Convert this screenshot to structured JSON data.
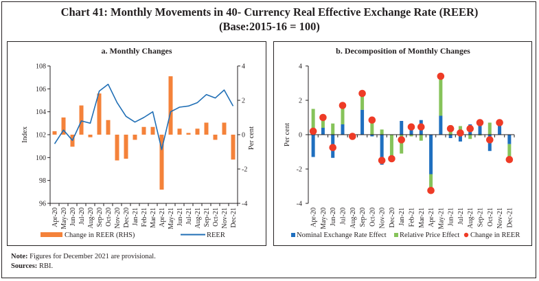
{
  "title": {
    "line1": "Chart 41: Monthly Movements in 40- Currency Real Effective Exchange Rate (REER)",
    "line2": "(Base:2015-16 = 100)"
  },
  "notes": {
    "note_label": "Note:",
    "note_text": " Figures for December 2021 are provisional.",
    "sources_label": "Sources:",
    "sources_text": " RBI."
  },
  "colors": {
    "orange": "#f4823a",
    "blue": "#1f6eb5",
    "nominal_blue": "#1f6fbf",
    "green": "#86c35a",
    "red": "#ee3b26"
  },
  "chart_data": [
    {
      "type": "bar+line",
      "title": "a. Monthly Changes",
      "xlabel": "",
      "ylabel": "Index",
      "y2label": "Per cent",
      "categories": [
        "Apr-20",
        "May-20",
        "Jun-20",
        "Jul-20",
        "Aug-20",
        "Sep-20",
        "Oct-20",
        "Nov-20",
        "Dec-20",
        "Jan-21",
        "Feb-21",
        "Mar-21",
        "Apr-21",
        "May-21",
        "Jun-21",
        "Jul-21",
        "Aug-21",
        "Sep-21",
        "Oct-21",
        "Nov-21",
        "Dec-21"
      ],
      "ylim": [
        96,
        108
      ],
      "yticks": [
        "96",
        "98",
        "100",
        "102",
        "104",
        "106",
        "108"
      ],
      "y2lim": [
        -4,
        4
      ],
      "y2ticks": [
        "-4",
        "-2",
        "0",
        "2",
        "4"
      ],
      "series": [
        {
          "name": "Change in REER (RHS)",
          "type": "bar",
          "axis": "right",
          "values": [
            0.2,
            1.0,
            -0.7,
            1.7,
            -0.15,
            2.4,
            0.85,
            -1.5,
            -1.4,
            -0.3,
            0.45,
            0.45,
            -3.2,
            3.4,
            0.35,
            0.1,
            0.35,
            0.7,
            -0.3,
            0.7,
            -1.45
          ]
        },
        {
          "name": "REER",
          "type": "line",
          "axis": "left",
          "values": [
            101.2,
            102.4,
            101.5,
            103.2,
            103.0,
            105.8,
            106.4,
            104.8,
            103.6,
            103.1,
            103.5,
            104.0,
            100.7,
            104.0,
            104.4,
            104.5,
            104.8,
            105.5,
            105.2,
            105.9,
            104.5
          ]
        }
      ],
      "legend": [
        "Change in REER (RHS)",
        "REER"
      ],
      "legend_position": "bottom"
    },
    {
      "type": "stacked-bar+scatter",
      "title": "b. Decomposition of Monthly Changes",
      "xlabel": "",
      "ylabel": "Per cent",
      "categories": [
        "Apr-20",
        "May-20",
        "Jun-20",
        "Jul-20",
        "Aug-20",
        "Sep-20",
        "Oct-20",
        "Nov-20",
        "Dec-20",
        "Jan-21",
        "Feb-21",
        "Mar-21",
        "Apr-21",
        "May-21",
        "Jun-21",
        "Jul-21",
        "Aug-21",
        "Sep-21",
        "Oct-21",
        "Nov-21",
        "Dec-21"
      ],
      "ylim": [
        -4,
        4
      ],
      "yticks": [
        "-4",
        "-2",
        "0",
        "2",
        "4"
      ],
      "series": [
        {
          "name": "Nominal Exchange Rate Effect",
          "type": "stacked-bar",
          "values": [
            -1.3,
            0.4,
            -1.35,
            0.6,
            -0.1,
            1.45,
            -0.1,
            -1.75,
            0.0,
            0.8,
            0.45,
            0.85,
            -2.3,
            1.1,
            -0.2,
            -0.4,
            0.6,
            0.7,
            -0.95,
            0.7,
            -0.55
          ]
        },
        {
          "name": "Relative Price Effect",
          "type": "stacked-bar",
          "values": [
            1.5,
            0.6,
            0.65,
            1.1,
            0.0,
            1.0,
            0.85,
            0.3,
            -1.4,
            -1.1,
            -0.1,
            -0.35,
            -1.0,
            2.3,
            0.55,
            0.5,
            -0.25,
            -0.05,
            0.7,
            0.0,
            -0.9
          ]
        },
        {
          "name": "Change in REER",
          "type": "scatter",
          "values": [
            0.2,
            1.0,
            -0.75,
            1.7,
            -0.1,
            2.4,
            0.85,
            -1.5,
            -1.4,
            -0.3,
            0.45,
            0.45,
            -3.25,
            3.4,
            0.35,
            0.1,
            0.35,
            0.7,
            -0.3,
            0.7,
            -1.45
          ]
        }
      ],
      "legend": [
        "Nominal Exchange Rate Effect",
        "Relative Price Effect",
        "Change in REER"
      ],
      "legend_position": "bottom"
    }
  ]
}
